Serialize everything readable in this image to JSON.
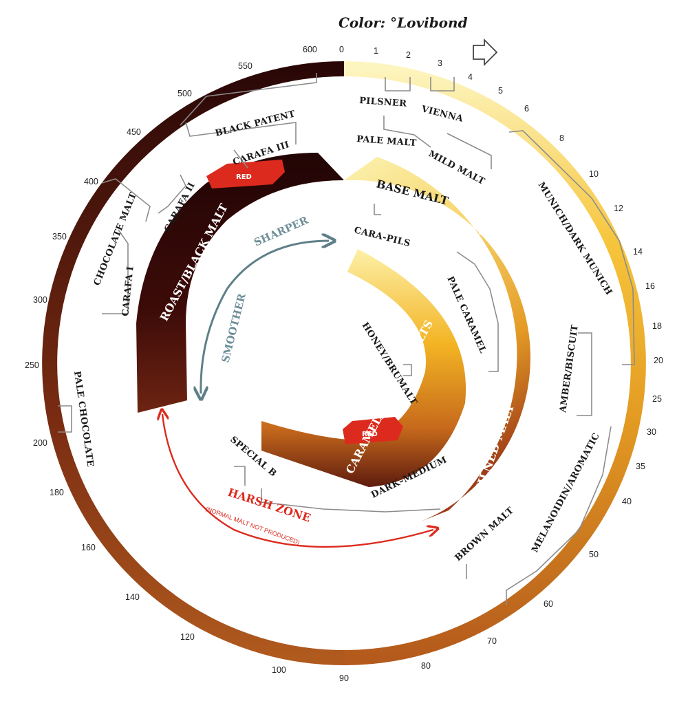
{
  "title": "Color: °Lovibond",
  "scale_ticks": [
    "0",
    "1",
    "2",
    "3",
    "4",
    "5",
    "6",
    "8",
    "10",
    "12",
    "14",
    "16",
    "18",
    "20",
    "25",
    "30",
    "35",
    "40",
    "50",
    "60",
    "70",
    "80",
    "90",
    "100",
    "120",
    "140",
    "160",
    "180",
    "200",
    "250",
    "300",
    "350",
    "400",
    "450",
    "500",
    "550",
    "600"
  ],
  "bands": {
    "base": "BASE MALT",
    "kilned": "KILNED MALT",
    "caramel": "CARAMEL/CRYSTAL MALTS",
    "roast": "ROAST/BLACK MALT",
    "red_roast": "RED",
    "red_caramel": "RED"
  },
  "malts": {
    "pilsner": "PILSNER",
    "vienna": "VIENNA",
    "pale_malt": "PALE MALT",
    "mild_malt": "MILD MALT",
    "munich": "MUNICH/DARK MUNICH",
    "amber": "AMBER/BISCUIT",
    "melanoidin": "MELANOIDIN/AROMATIC",
    "brown": "BROWN MALT",
    "cara_pils": "CARA-PILS",
    "pale_caramel": "PALE CARAMEL",
    "honey": "HONEY/BRUMALT",
    "dark_medium": "DARK–MEDIUM",
    "special_b": "SPECIAL B",
    "pale_chocolate": "PALE CHOCOLATE",
    "carafa_i": "CARAFA I",
    "chocolate": "CHOCOLATE MALT",
    "carafa_ii": "CARAFA II",
    "carafa_iii": "CARAFA III",
    "black_patent": "BLACK PATENT"
  },
  "arrows": {
    "sharper": "SHARPER",
    "smoother": "SMOOTHER",
    "harsh": "HARSH ZONE",
    "harsh_note": "(NORMAL MALT NOT PRODUCED)"
  },
  "colors": {
    "pale": "#fdf3b4",
    "gold": "#f4b320",
    "amber": "#c8711c",
    "brown": "#7a2d14",
    "black": "#2a0808",
    "red": "#dc2b1e",
    "slate": "#5f7f88",
    "bracket": "#8c8c8c"
  }
}
